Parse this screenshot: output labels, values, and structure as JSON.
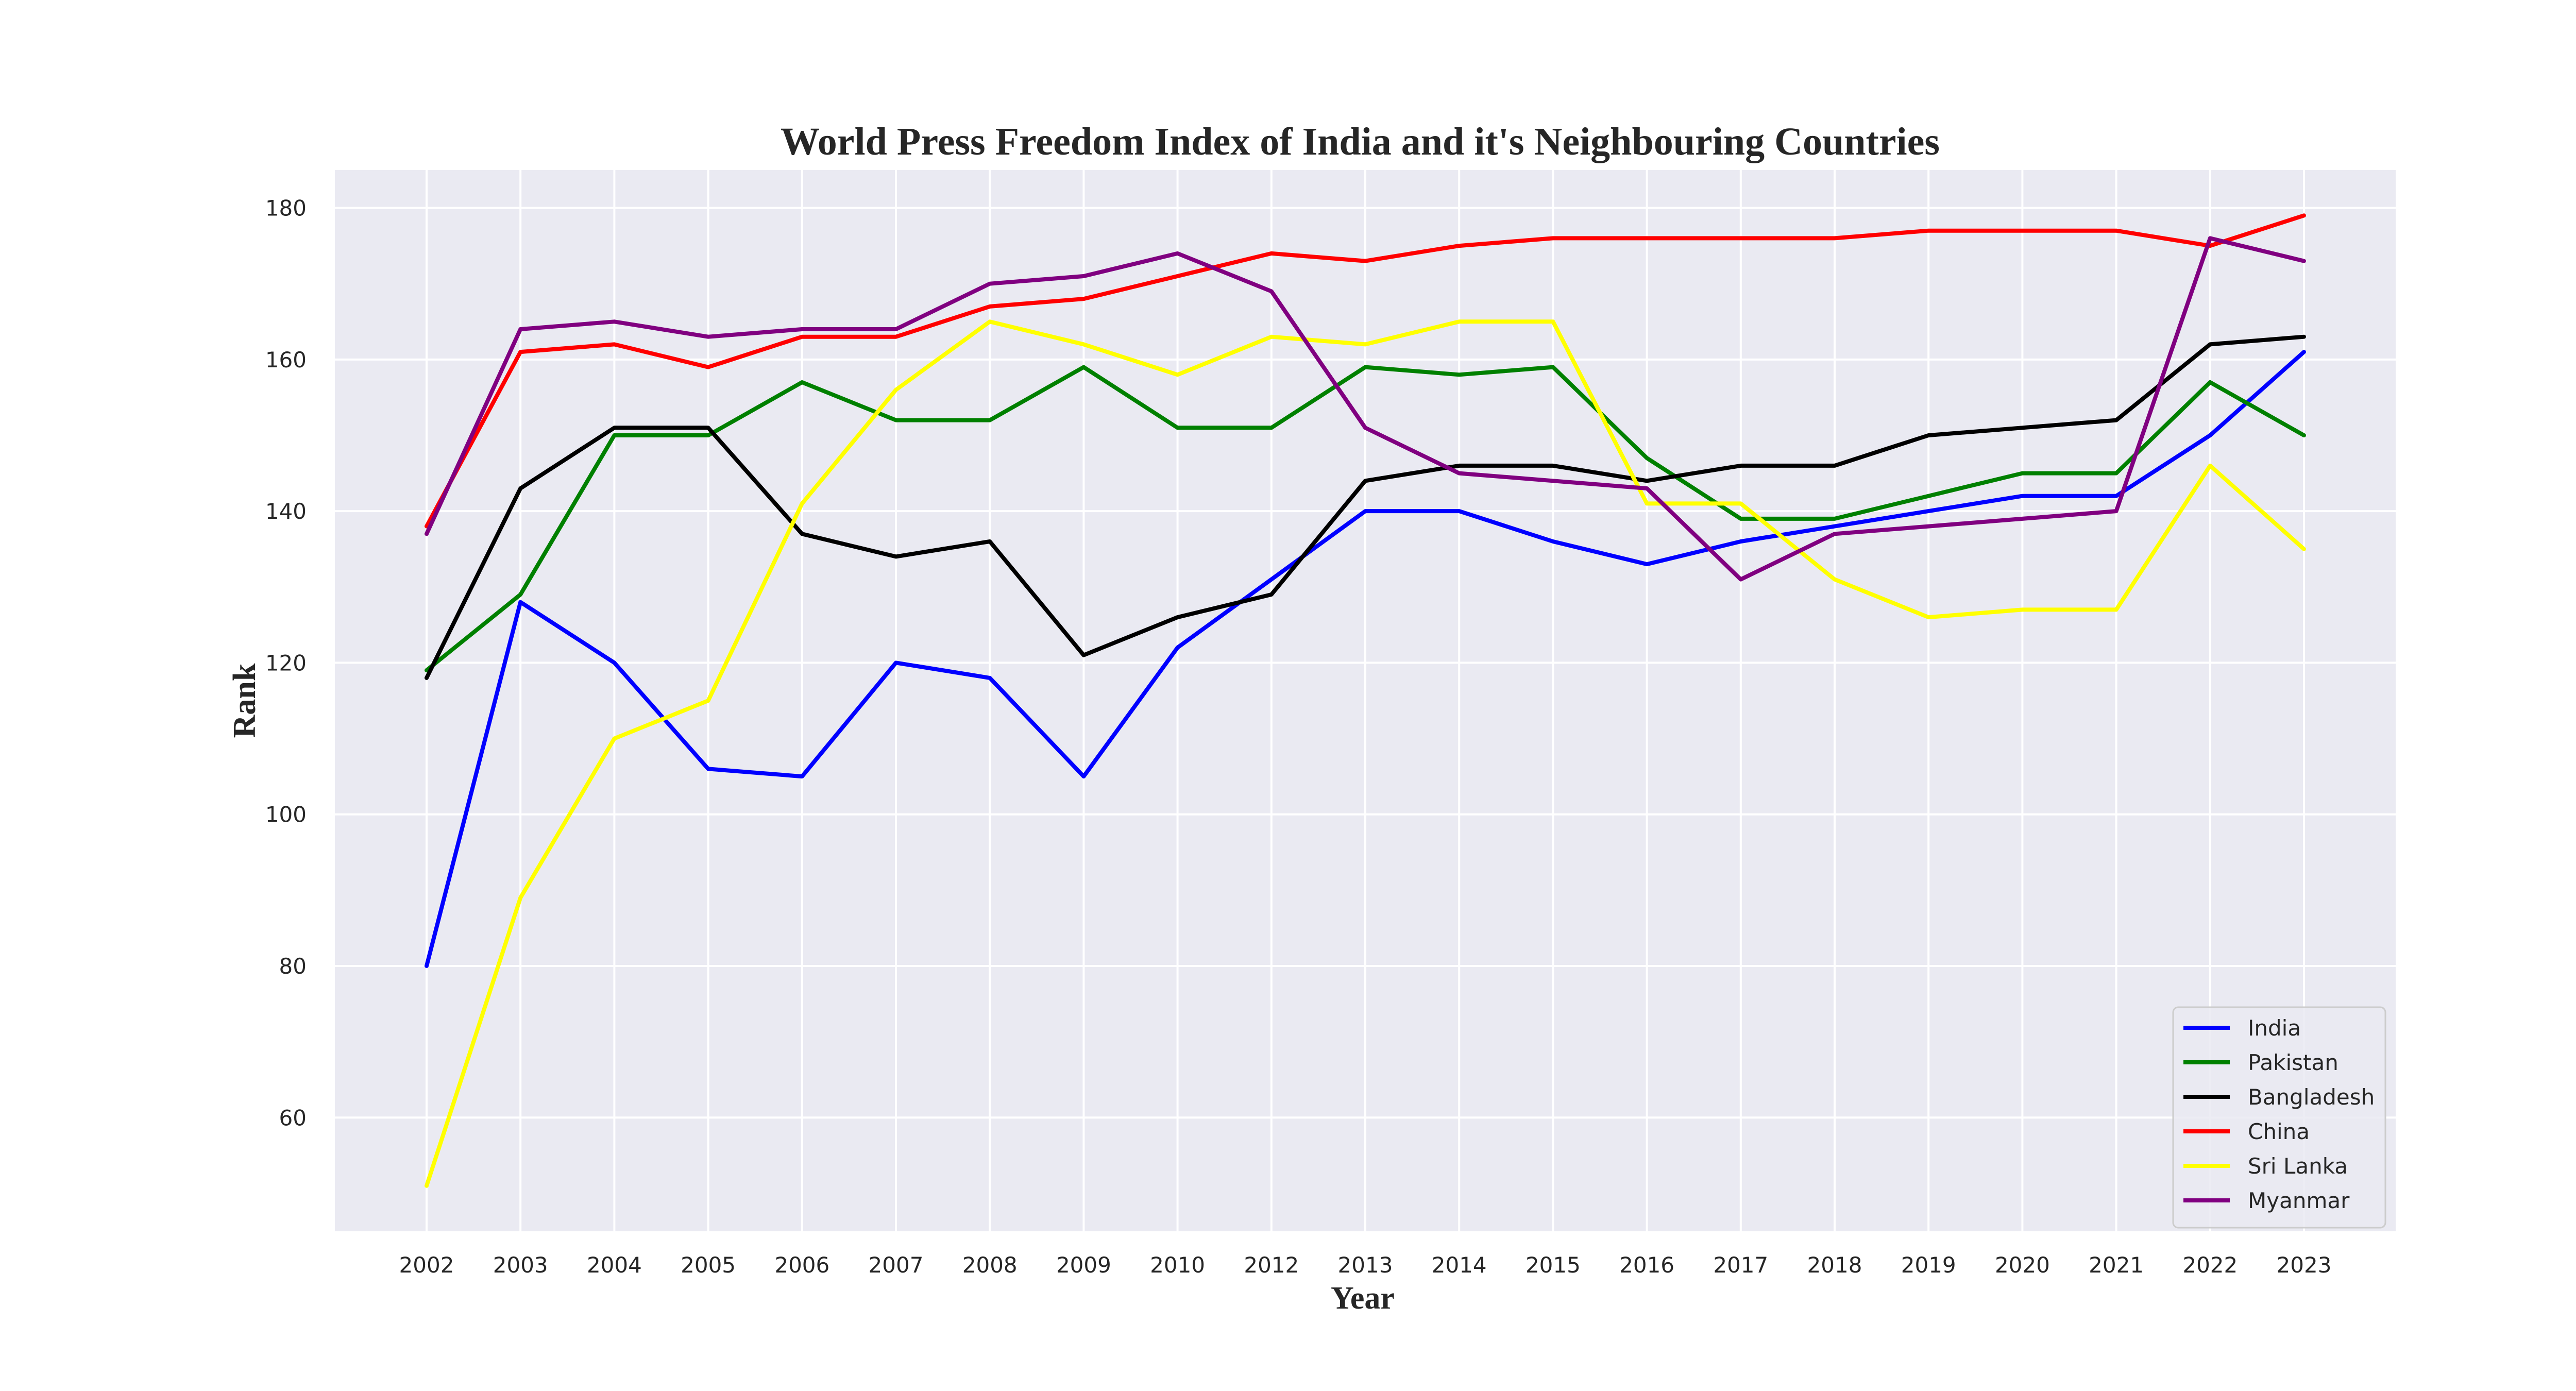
{
  "chart_data": {
    "type": "line",
    "title": "World Press Freedom Index of India and it's Neighbouring Countries",
    "xlabel": "Year",
    "ylabel": "Rank",
    "categories": [
      "2002",
      "2003",
      "2004",
      "2005",
      "2006",
      "2007",
      "2008",
      "2009",
      "2010",
      "2012",
      "2013",
      "2014",
      "2015",
      "2016",
      "2017",
      "2018",
      "2019",
      "2020",
      "2021",
      "2022",
      "2023"
    ],
    "ylim": [
      45,
      185
    ],
    "yticks": [
      60,
      80,
      100,
      120,
      140,
      160,
      180
    ],
    "grid": true,
    "legend_position": "lower-right",
    "background_color": "#eaeaf2",
    "grid_color": "#ffffff",
    "series": [
      {
        "name": "India",
        "color": "#0000ff",
        "values": [
          80,
          128,
          120,
          106,
          105,
          120,
          118,
          105,
          122,
          131,
          140,
          140,
          136,
          133,
          136,
          138,
          140,
          142,
          142,
          150,
          161
        ]
      },
      {
        "name": "Pakistan",
        "color": "#008000",
        "values": [
          119,
          129,
          150,
          150,
          157,
          152,
          152,
          159,
          151,
          151,
          159,
          158,
          159,
          147,
          139,
          139,
          142,
          145,
          145,
          157,
          150
        ]
      },
      {
        "name": "Bangladesh",
        "color": "#000000",
        "values": [
          118,
          143,
          151,
          151,
          137,
          134,
          136,
          121,
          126,
          129,
          144,
          146,
          146,
          144,
          146,
          146,
          150,
          151,
          152,
          162,
          163
        ]
      },
      {
        "name": "China",
        "color": "#ff0000",
        "values": [
          138,
          161,
          162,
          159,
          163,
          163,
          167,
          168,
          171,
          174,
          173,
          175,
          176,
          176,
          176,
          176,
          177,
          177,
          177,
          175,
          179
        ]
      },
      {
        "name": "Sri Lanka",
        "color": "#ffff00",
        "values": [
          51,
          89,
          110,
          115,
          141,
          156,
          165,
          162,
          158,
          163,
          162,
          165,
          165,
          141,
          141,
          131,
          126,
          127,
          127,
          146,
          135
        ]
      },
      {
        "name": "Myanmar",
        "color": "#800080",
        "values": [
          137,
          164,
          165,
          163,
          164,
          164,
          170,
          171,
          174,
          169,
          151,
          145,
          144,
          143,
          131,
          137,
          138,
          139,
          140,
          176,
          173
        ]
      }
    ]
  }
}
